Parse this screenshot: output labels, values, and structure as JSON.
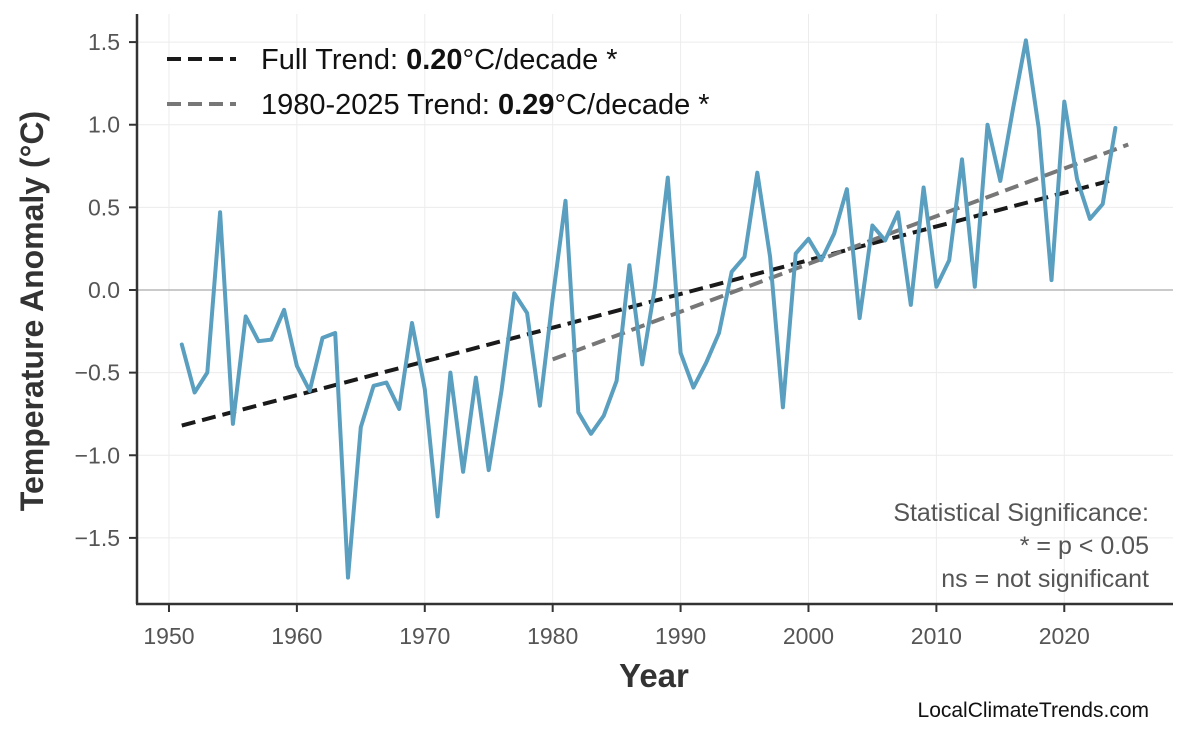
{
  "chart_data": {
    "type": "line",
    "xlabel": "Year",
    "ylabel": "Temperature Anomaly (°C)",
    "xlim": [
      1947.5,
      2028.5
    ],
    "ylim": [
      -1.9,
      1.67
    ],
    "xticks": [
      1950,
      1960,
      1970,
      1980,
      1990,
      2000,
      2010,
      2020
    ],
    "yticks": [
      -1.5,
      -1.0,
      -0.5,
      0.0,
      0.5,
      1.0,
      1.5
    ],
    "ytick_labels": [
      "−1.5",
      "−1.0",
      "−0.5",
      "0.0",
      "0.5",
      "1.0",
      "1.5"
    ],
    "grid": true,
    "zero_line": true,
    "series": [
      {
        "color": "#5a9fbf",
        "x": [
          1951,
          1952,
          1953,
          1954,
          1955,
          1956,
          1957,
          1958,
          1959,
          1960,
          1961,
          1962,
          1963,
          1964,
          1965,
          1966,
          1967,
          1968,
          1969,
          1970,
          1971,
          1972,
          1973,
          1974,
          1975,
          1976,
          1977,
          1978,
          1979,
          1980,
          1981,
          1982,
          1983,
          1984,
          1985,
          1986,
          1987,
          1988,
          1989,
          1990,
          1991,
          1992,
          1993,
          1994,
          1995,
          1996,
          1997,
          1998,
          1999,
          2000,
          2001,
          2002,
          2003,
          2004,
          2005,
          2006,
          2007,
          2008,
          2009,
          2010,
          2011,
          2012,
          2013,
          2014,
          2015,
          2016,
          2017,
          2018,
          2019,
          2020,
          2021,
          2022,
          2023,
          2024
        ],
        "y": [
          -0.33,
          -0.62,
          -0.5,
          0.47,
          -0.81,
          -0.16,
          -0.31,
          -0.3,
          -0.12,
          -0.46,
          -0.61,
          -0.29,
          -0.26,
          -1.74,
          -0.83,
          -0.58,
          -0.56,
          -0.72,
          -0.2,
          -0.6,
          -1.37,
          -0.5,
          -1.1,
          -0.53,
          -1.09,
          -0.61,
          -0.02,
          -0.14,
          -0.7,
          -0.05,
          0.54,
          -0.74,
          -0.87,
          -0.76,
          -0.55,
          0.15,
          -0.45,
          0.02,
          0.68,
          -0.38,
          -0.59,
          -0.44,
          -0.26,
          0.11,
          0.2,
          0.71,
          0.2,
          -0.71,
          0.22,
          0.31,
          0.18,
          0.34,
          0.61,
          -0.17,
          0.39,
          0.3,
          0.47,
          -0.09,
          0.62,
          0.02,
          0.18,
          0.79,
          0.02,
          1.0,
          0.66,
          1.1,
          1.51,
          0.98,
          0.06,
          1.14,
          0.67,
          0.43,
          0.52,
          0.98
        ]
      }
    ],
    "trends": [
      {
        "name_prefix": "Full Trend: ",
        "value": "0.20",
        "name_suffix": "°C/decade *",
        "x0": 1951,
        "y0": -0.82,
        "x1": 2024,
        "y1": 0.67,
        "color": "#1a1a1a"
      },
      {
        "name_prefix": "1980-2025 Trend: ",
        "value": "0.29",
        "name_suffix": "°C/decade *",
        "x0": 1980,
        "y0": -0.42,
        "x1": 2025,
        "y1": 0.88,
        "color": "#777777"
      }
    ],
    "legend_position": "top-left",
    "annotation": {
      "lines": [
        "Statistical Significance:",
        "* = p < 0.05",
        "ns = not significant"
      ],
      "position": "bottom-right"
    },
    "source": "LocalClimateTrends.com"
  }
}
